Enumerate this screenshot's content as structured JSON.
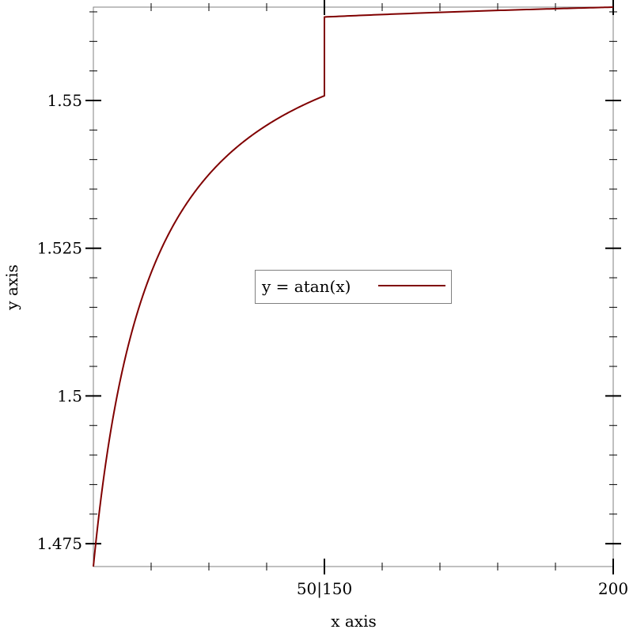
{
  "chart_data": {
    "type": "line",
    "title": "",
    "xlabel": "x axis",
    "ylabel": "y axis",
    "x_segments": [
      {
        "xlim": [
          10,
          50
        ]
      },
      {
        "xlim": [
          150,
          200
        ]
      }
    ],
    "ylim": [
      1.4711276743037347,
      1.5658
    ],
    "x_ticks": [
      {
        "value": 50,
        "label": "50|150"
      },
      {
        "value": 200,
        "label": "200"
      }
    ],
    "y_ticks": [
      {
        "value": 1.475,
        "label": "1.475"
      },
      {
        "value": 1.5,
        "label": "1.5"
      },
      {
        "value": 1.525,
        "label": "1.525"
      },
      {
        "value": 1.55,
        "label": "1.55"
      }
    ],
    "series": [
      {
        "name": "y = atan(x)",
        "function": "atan(x)",
        "color": "#800000"
      }
    ],
    "legend": {
      "position": "center"
    },
    "grid": false
  }
}
